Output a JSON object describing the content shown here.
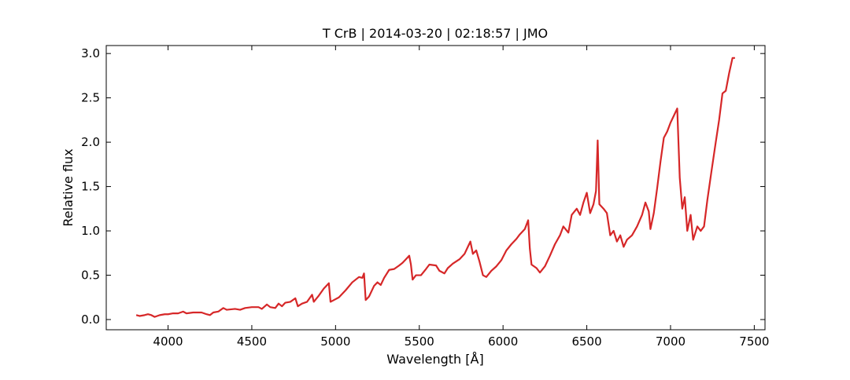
{
  "chart_data": {
    "type": "line",
    "title": "T CrB | 2014-03-20 | 02:18:57 | JMO",
    "x_label": "Wavelength [Å]",
    "y_label": "Relative flux",
    "xlim": [
      3631,
      7564
    ],
    "ylim": [
      -0.115,
      3.09
    ],
    "xticks": [
      4000,
      4500,
      5000,
      5500,
      6000,
      6500,
      7000,
      7500
    ],
    "yticks": [
      {
        "value": 0,
        "label": "0.0"
      },
      0.5,
      {
        "value": 1,
        "label": "1.0"
      },
      1.5,
      {
        "value": 2,
        "label": "2.0"
      },
      2.5,
      {
        "value": 3,
        "label": "3.0"
      }
    ],
    "grid": false,
    "series": [
      {
        "color": "#d62728",
        "x": [
          3810,
          3830,
          3860,
          3880,
          3900,
          3920,
          3950,
          3980,
          4000,
          4030,
          4060,
          4090,
          4110,
          4150,
          4200,
          4230,
          4250,
          4270,
          4300,
          4330,
          4350,
          4400,
          4430,
          4460,
          4500,
          4540,
          4560,
          4590,
          4610,
          4640,
          4660,
          4680,
          4700,
          4730,
          4760,
          4775,
          4800,
          4830,
          4860,
          4870,
          4900,
          4930,
          4950,
          4960,
          4970,
          4990,
          5020,
          5060,
          5100,
          5140,
          5160,
          5170,
          5180,
          5200,
          5230,
          5250,
          5270,
          5290,
          5320,
          5350,
          5380,
          5400,
          5420,
          5440,
          5450,
          5460,
          5480,
          5510,
          5540,
          5560,
          5600,
          5620,
          5650,
          5670,
          5700,
          5740,
          5770,
          5790,
          5805,
          5820,
          5840,
          5860,
          5880,
          5900,
          5930,
          5960,
          5990,
          6020,
          6050,
          6080,
          6100,
          6130,
          6150,
          6160,
          6170,
          6200,
          6220,
          6250,
          6280,
          6310,
          6340,
          6360,
          6390,
          6410,
          6440,
          6460,
          6480,
          6500,
          6520,
          6540,
          6555,
          6565,
          6575,
          6600,
          6620,
          6640,
          6660,
          6680,
          6700,
          6720,
          6740,
          6770,
          6800,
          6830,
          6850,
          6870,
          6880,
          6900,
          6920,
          6940,
          6960,
          6980,
          7000,
          7020,
          7040,
          7055,
          7070,
          7085,
          7100,
          7120,
          7135,
          7160,
          7180,
          7200,
          7220,
          7245,
          7270,
          7290,
          7310,
          7330,
          7350,
          7370,
          7385
        ],
        "values": [
          0.05,
          0.04,
          0.05,
          0.06,
          0.05,
          0.03,
          0.05,
          0.06,
          0.06,
          0.07,
          0.07,
          0.09,
          0.07,
          0.08,
          0.08,
          0.06,
          0.05,
          0.08,
          0.09,
          0.13,
          0.11,
          0.12,
          0.11,
          0.13,
          0.14,
          0.14,
          0.12,
          0.17,
          0.14,
          0.13,
          0.18,
          0.15,
          0.19,
          0.2,
          0.24,
          0.15,
          0.18,
          0.2,
          0.28,
          0.2,
          0.27,
          0.35,
          0.39,
          0.41,
          0.2,
          0.22,
          0.25,
          0.33,
          0.42,
          0.48,
          0.47,
          0.52,
          0.22,
          0.26,
          0.38,
          0.42,
          0.39,
          0.47,
          0.56,
          0.57,
          0.61,
          0.64,
          0.68,
          0.72,
          0.62,
          0.45,
          0.5,
          0.5,
          0.57,
          0.62,
          0.61,
          0.55,
          0.52,
          0.58,
          0.63,
          0.68,
          0.74,
          0.82,
          0.88,
          0.74,
          0.78,
          0.65,
          0.5,
          0.48,
          0.55,
          0.6,
          0.67,
          0.78,
          0.85,
          0.91,
          0.96,
          1.02,
          1.12,
          0.8,
          0.62,
          0.58,
          0.53,
          0.6,
          0.72,
          0.85,
          0.95,
          1.05,
          0.98,
          1.18,
          1.25,
          1.18,
          1.32,
          1.43,
          1.2,
          1.3,
          1.45,
          2.02,
          1.3,
          1.25,
          1.2,
          0.95,
          1.0,
          0.88,
          0.95,
          0.82,
          0.9,
          0.95,
          1.05,
          1.18,
          1.32,
          1.22,
          1.02,
          1.2,
          1.48,
          1.78,
          2.05,
          2.12,
          2.22,
          2.3,
          2.38,
          1.6,
          1.25,
          1.38,
          1.0,
          1.18,
          0.9,
          1.05,
          1.0,
          1.05,
          1.35,
          1.68,
          2.0,
          2.25,
          2.55,
          2.58,
          2.78,
          2.95,
          2.95
        ]
      }
    ]
  }
}
